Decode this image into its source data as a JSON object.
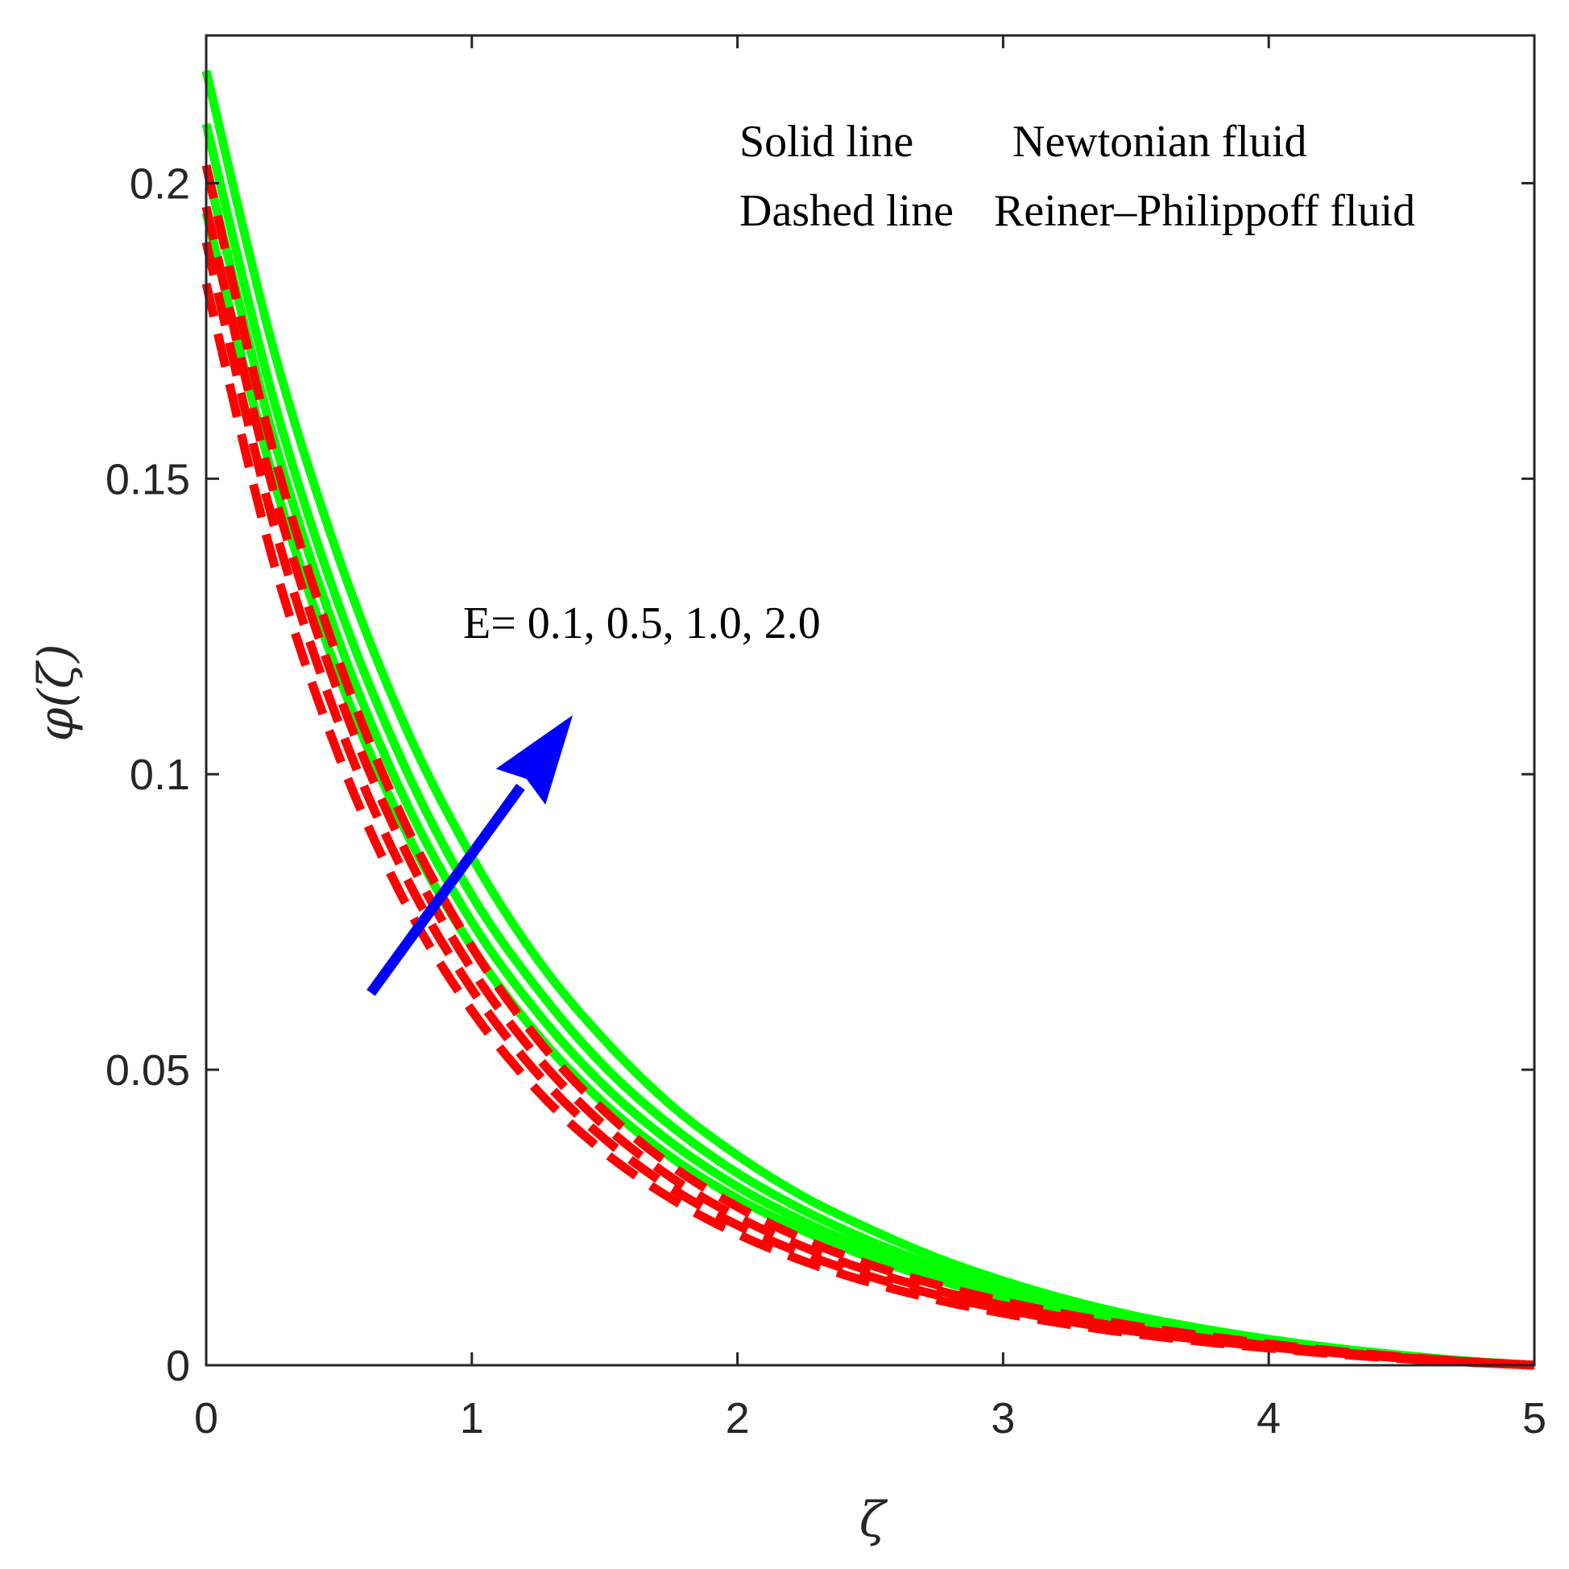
{
  "chart_data": {
    "type": "line",
    "xlabel": "ζ",
    "ylabel": "φ(ζ)",
    "xlim": [
      0,
      5
    ],
    "ylim": [
      0,
      0.225
    ],
    "xticks": [
      0,
      1,
      2,
      3,
      4,
      5
    ],
    "xtick_labels": [
      "0",
      "1",
      "2",
      "3",
      "4",
      "5"
    ],
    "yticks": [
      0,
      0.05,
      0.1,
      0.15,
      0.2
    ],
    "ytick_labels": [
      "0",
      "0.05",
      "0.1",
      "0.15",
      "0.2"
    ],
    "grid": false,
    "colors": {
      "newtonian": "#00ff00",
      "reiner": "#ff0000",
      "arrow": "#0000ff",
      "axes": "#262626"
    },
    "legend_text": [
      {
        "style": "Solid line",
        "desc": "Newtonian fluid"
      },
      {
        "style": "Dashed line",
        "desc": "Reiner–Philippoff fluid"
      }
    ],
    "annotation": {
      "text": "E= 0.1, 0.5, 1.0, 2.0",
      "arrow_from": [
        0.62,
        0.063
      ],
      "arrow_to": [
        1.38,
        0.11
      ]
    },
    "x": [
      0,
      0.25,
      0.5,
      0.75,
      1,
      1.25,
      1.5,
      1.75,
      2,
      2.25,
      2.5,
      2.75,
      3,
      3.25,
      3.5,
      3.75,
      4,
      4.25,
      4.5,
      4.75,
      5
    ],
    "series": [
      {
        "group": "newtonian",
        "style": "solid",
        "values": [
          0.219,
          0.1725,
          0.1365,
          0.108,
          0.086,
          0.0685,
          0.055,
          0.044,
          0.0355,
          0.0285,
          0.023,
          0.0182,
          0.0143,
          0.011,
          0.0083,
          0.0062,
          0.0044,
          0.0029,
          0.0017,
          0.0007,
          0
        ]
      },
      {
        "group": "newtonian",
        "style": "solid",
        "values": [
          0.21,
          0.164,
          0.1285,
          0.101,
          0.0795,
          0.0635,
          0.0505,
          0.0405,
          0.0325,
          0.0262,
          0.021,
          0.0167,
          0.0131,
          0.0101,
          0.0077,
          0.0057,
          0.004,
          0.0027,
          0.0016,
          0.0007,
          0
        ]
      },
      {
        "group": "newtonian",
        "style": "solid",
        "values": [
          0.203,
          0.1575,
          0.1225,
          0.0955,
          0.075,
          0.0595,
          0.0472,
          0.0377,
          0.0302,
          0.0243,
          0.0195,
          0.0155,
          0.0122,
          0.0094,
          0.0071,
          0.0053,
          0.0037,
          0.0025,
          0.0015,
          0.0006,
          0
        ]
      },
      {
        "group": "newtonian",
        "style": "solid",
        "values": [
          0.195,
          0.1505,
          0.1165,
          0.0905,
          0.0708,
          0.0558,
          0.0442,
          0.0352,
          0.0282,
          0.0227,
          0.0182,
          0.0145,
          0.0114,
          0.0088,
          0.0067,
          0.0049,
          0.0035,
          0.0023,
          0.0014,
          0.0006,
          0
        ]
      },
      {
        "group": "reiner",
        "style": "dashed",
        "values": [
          0.203,
          0.155,
          0.119,
          0.0915,
          0.0708,
          0.055,
          0.043,
          0.0338,
          0.0268,
          0.0213,
          0.017,
          0.0136,
          0.0108,
          0.0085,
          0.0066,
          0.005,
          0.0036,
          0.0024,
          0.0014,
          0.0006,
          0
        ]
      },
      {
        "group": "reiner",
        "style": "dashed",
        "values": [
          0.196,
          0.1485,
          0.1135,
          0.087,
          0.067,
          0.052,
          0.0405,
          0.0318,
          0.0251,
          0.02,
          0.0159,
          0.0127,
          0.0101,
          0.0079,
          0.0061,
          0.0046,
          0.0033,
          0.0022,
          0.0013,
          0.0006,
          0
        ]
      },
      {
        "group": "reiner",
        "style": "dashed",
        "values": [
          0.19,
          0.143,
          0.1085,
          0.0828,
          0.0636,
          0.0492,
          0.0383,
          0.03,
          0.0237,
          0.0188,
          0.015,
          0.0119,
          0.0095,
          0.0074,
          0.0057,
          0.0043,
          0.0031,
          0.0021,
          0.0012,
          0.0005,
          0
        ]
      },
      {
        "group": "reiner",
        "style": "dashed",
        "values": [
          0.183,
          0.1365,
          0.103,
          0.0782,
          0.06,
          0.0463,
          0.036,
          0.0282,
          0.0222,
          0.0176,
          0.014,
          0.0111,
          0.0088,
          0.0069,
          0.0053,
          0.004,
          0.0029,
          0.0019,
          0.0011,
          0.0005,
          0
        ]
      }
    ]
  }
}
